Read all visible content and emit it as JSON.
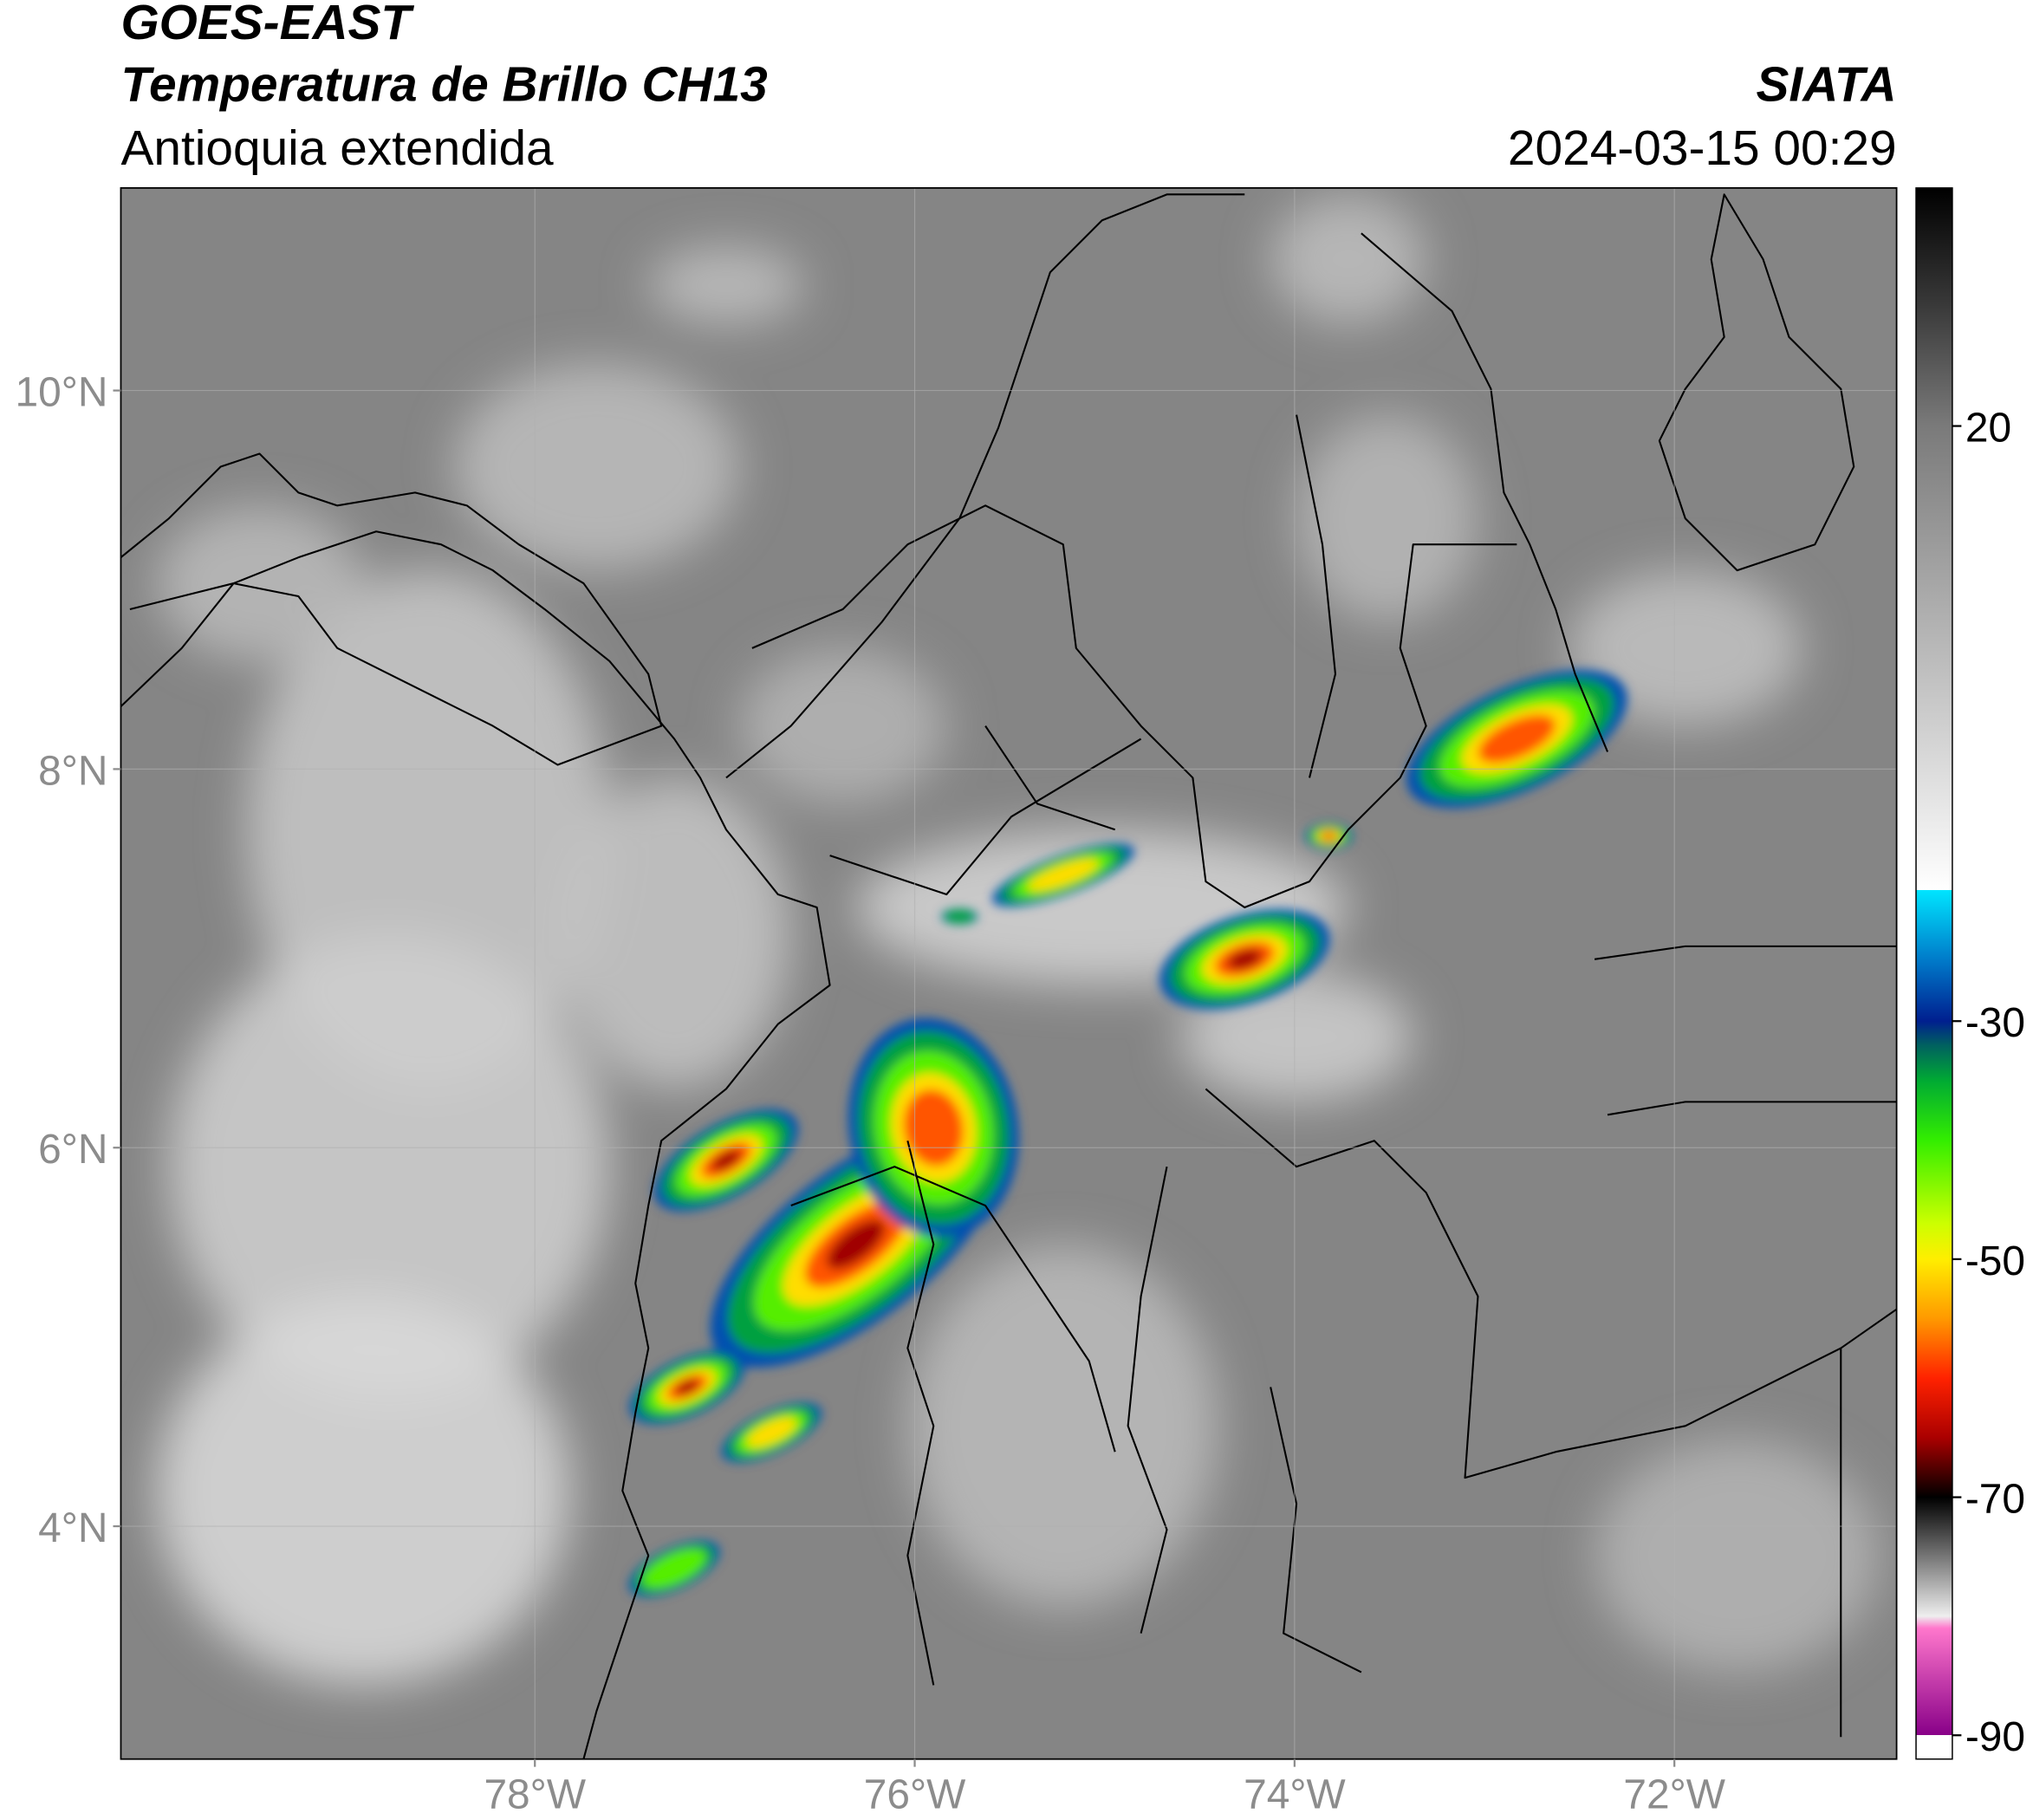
{
  "header": {
    "satellite": "GOES-EAST",
    "product": "Temperatura de Brillo CH13",
    "region": "Antioquia extendida",
    "source": "SIATA",
    "datetime": "2024-03-15 00:29"
  },
  "map": {
    "xlim": [
      -80.18,
      -70.83
    ],
    "ylim": [
      2.77,
      11.07
    ],
    "lon_ticks": [
      {
        "value": -78,
        "label": "78°W"
      },
      {
        "value": -76,
        "label": "76°W"
      },
      {
        "value": -74,
        "label": "74°W"
      },
      {
        "value": -72,
        "label": "72°W"
      }
    ],
    "lat_ticks": [
      {
        "value": 10,
        "label": "10°N"
      },
      {
        "value": 8,
        "label": "8°N"
      },
      {
        "value": 6,
        "label": "6°N"
      },
      {
        "value": 4,
        "label": "4°N"
      }
    ],
    "grid": true
  },
  "colorbar": {
    "range": [
      40,
      -92
    ],
    "ticks": [
      20,
      -30,
      -50,
      -70,
      -90
    ],
    "colormap": [
      {
        "value": 40,
        "color": "#000000"
      },
      {
        "value": 30,
        "color": "#3a3a3a"
      },
      {
        "value": 20,
        "color": "#7a7a7a"
      },
      {
        "value": 0,
        "color": "#bdbdbd"
      },
      {
        "value": -19,
        "color": "#ffffff"
      },
      {
        "value": -19,
        "color": "#00e5ff"
      },
      {
        "value": -25,
        "color": "#0078c8"
      },
      {
        "value": -30,
        "color": "#001f8f"
      },
      {
        "value": -32,
        "color": "#006060"
      },
      {
        "value": -35,
        "color": "#00aa33"
      },
      {
        "value": -40,
        "color": "#33ee00"
      },
      {
        "value": -47,
        "color": "#ccff00"
      },
      {
        "value": -50,
        "color": "#ffee00"
      },
      {
        "value": -55,
        "color": "#ff9900"
      },
      {
        "value": -60,
        "color": "#ff2200"
      },
      {
        "value": -65,
        "color": "#aa0000"
      },
      {
        "value": -70,
        "color": "#000000"
      },
      {
        "value": -75,
        "color": "#777777"
      },
      {
        "value": -80,
        "color": "#eeeeee"
      },
      {
        "value": -81,
        "color": "#ff77cc"
      },
      {
        "value": -90,
        "color": "#880088"
      },
      {
        "value": -90,
        "color": "#ffffff"
      },
      {
        "value": -92,
        "color": "#ffffff"
      }
    ]
  }
}
